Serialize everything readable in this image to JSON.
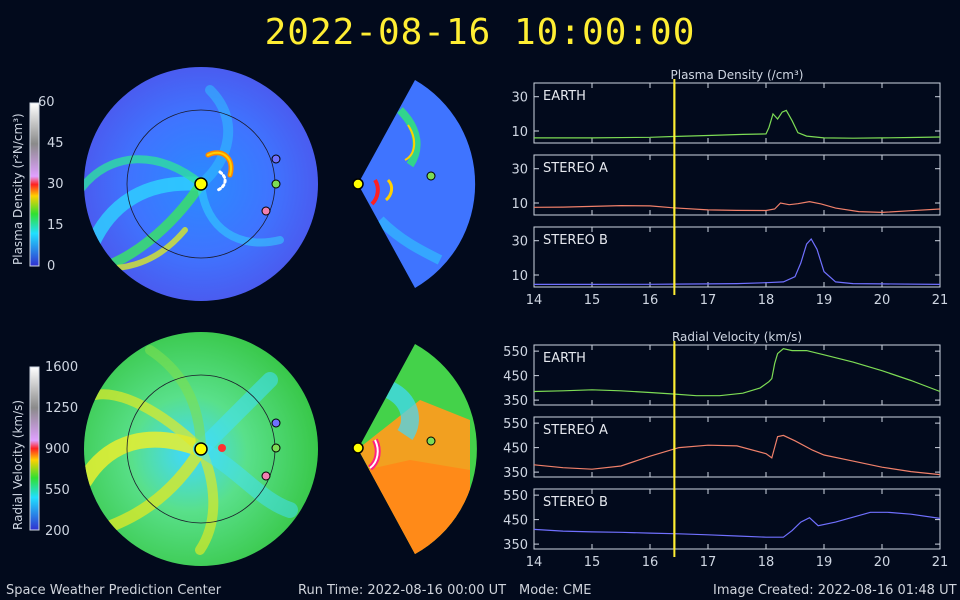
{
  "header": {
    "timestamp": "2022-08-16 10:00:00"
  },
  "footer": {
    "org": "Space Weather Prediction Center",
    "run_time": "Run Time: 2022-08-16 00:00 UT",
    "mode": "Mode: CME",
    "image_created": "Image Created: 2022-08-16 01:48 UT"
  },
  "colorbars": [
    {
      "label": "Plasma Density (r²N/cm³)",
      "ticks": [
        "60",
        "45",
        "30",
        "15",
        "0"
      ],
      "min": 0,
      "max": 60
    },
    {
      "label": "Radial Velocity (km/s)",
      "ticks": [
        "1600",
        "1250",
        "900",
        "550",
        "200"
      ],
      "min": 200,
      "max": 1600
    }
  ],
  "colors": {
    "earth": "#7ddc55",
    "stereo_a": "#f0806a",
    "stereo_b": "#7070ff",
    "current_time": "#ffee33",
    "sun": "#ffff00"
  },
  "chart_data": [
    {
      "type": "line",
      "title": "Plasma Density (/cm³)",
      "xlim": [
        14,
        21
      ],
      "x_ticks": [
        "14",
        "15",
        "16",
        "17",
        "18",
        "19",
        "20",
        "21"
      ],
      "current_time_x": 16.42,
      "panels": [
        {
          "name": "EARTH",
          "ylim": [
            3,
            38
          ],
          "y_ticks": [
            "30",
            "10"
          ],
          "y_tick_values": [
            30,
            10
          ],
          "x": [
            14,
            15,
            16,
            16.4,
            17,
            17.6,
            18,
            18.05,
            18.12,
            18.2,
            18.28,
            18.35,
            18.45,
            18.55,
            18.7,
            19,
            19.5,
            20,
            20.5,
            21
          ],
          "y": [
            6,
            6,
            6.3,
            6.8,
            7.4,
            8,
            8.3,
            12,
            20,
            17,
            21,
            22,
            16,
            9,
            7,
            6,
            5.8,
            6,
            6.2,
            6.5
          ]
        },
        {
          "name": "STEREO A",
          "ylim": [
            3,
            38
          ],
          "y_ticks": [
            "30",
            "10"
          ],
          "y_tick_values": [
            30,
            10
          ],
          "x": [
            14,
            14.5,
            15,
            15.5,
            16,
            16.4,
            17,
            17.5,
            18,
            18.15,
            18.25,
            18.4,
            18.55,
            18.75,
            18.95,
            19.2,
            19.6,
            20,
            20.5,
            21
          ],
          "y": [
            7.5,
            7.6,
            8,
            8.5,
            8.3,
            7.2,
            6,
            5.7,
            5.6,
            6.5,
            10,
            9,
            9.6,
            10.8,
            9.5,
            7,
            5,
            4.5,
            5.5,
            6.5
          ]
        },
        {
          "name": "STEREO B",
          "ylim": [
            3,
            38
          ],
          "y_ticks": [
            "30",
            "10"
          ],
          "y_tick_values": [
            30,
            10
          ],
          "x": [
            14,
            15,
            16,
            16.4,
            17,
            17.5,
            18,
            18.3,
            18.5,
            18.6,
            18.7,
            18.78,
            18.88,
            19,
            19.2,
            19.5,
            20,
            21
          ],
          "y": [
            4.5,
            4.5,
            4.6,
            4.7,
            4.8,
            5,
            5.5,
            6,
            9,
            17,
            28,
            31,
            25,
            12,
            6,
            5,
            4.8,
            4.5
          ]
        }
      ]
    },
    {
      "type": "line",
      "title": "Radial Velocity (km/s)",
      "xlim": [
        14,
        21
      ],
      "x_ticks": [
        "14",
        "15",
        "16",
        "17",
        "18",
        "19",
        "20",
        "21"
      ],
      "current_time_x": 16.42,
      "panels": [
        {
          "name": "EARTH",
          "ylim": [
            330,
            575
          ],
          "y_ticks": [
            "550",
            "450",
            "350"
          ],
          "y_tick_values": [
            550,
            450,
            350
          ],
          "x": [
            14,
            14.5,
            15,
            15.5,
            16,
            16.4,
            16.8,
            17.2,
            17.6,
            17.9,
            18.05,
            18.1,
            18.15,
            18.2,
            18.3,
            18.45,
            18.7,
            19,
            19.5,
            20,
            20.5,
            21
          ],
          "y": [
            385,
            388,
            392,
            388,
            381,
            375,
            368,
            368,
            378,
            400,
            425,
            438,
            500,
            540,
            560,
            552,
            552,
            535,
            505,
            470,
            430,
            385
          ]
        },
        {
          "name": "STEREO A",
          "ylim": [
            330,
            575
          ],
          "y_ticks": [
            "550",
            "450",
            "350"
          ],
          "y_tick_values": [
            550,
            450,
            350
          ],
          "x": [
            14,
            14.5,
            15,
            15.5,
            16,
            16.5,
            17,
            17.5,
            18,
            18.1,
            18.2,
            18.3,
            18.5,
            18.8,
            19,
            19.5,
            20,
            20.5,
            21
          ],
          "y": [
            380,
            368,
            362,
            375,
            415,
            450,
            460,
            457,
            425,
            408,
            495,
            500,
            478,
            440,
            420,
            395,
            370,
            352,
            340
          ]
        },
        {
          "name": "STEREO B",
          "ylim": [
            330,
            575
          ],
          "y_ticks": [
            "550",
            "450",
            "350"
          ],
          "y_tick_values": [
            550,
            450,
            350
          ],
          "x": [
            14,
            14.5,
            15,
            15.5,
            16,
            16.5,
            17,
            17.5,
            18,
            18.3,
            18.45,
            18.6,
            18.75,
            18.9,
            19.2,
            19.5,
            19.8,
            20.1,
            20.5,
            21
          ],
          "y": [
            410,
            403,
            400,
            398,
            395,
            392,
            388,
            383,
            378,
            378,
            405,
            440,
            458,
            425,
            440,
            460,
            480,
            480,
            472,
            455
          ]
        }
      ]
    }
  ]
}
